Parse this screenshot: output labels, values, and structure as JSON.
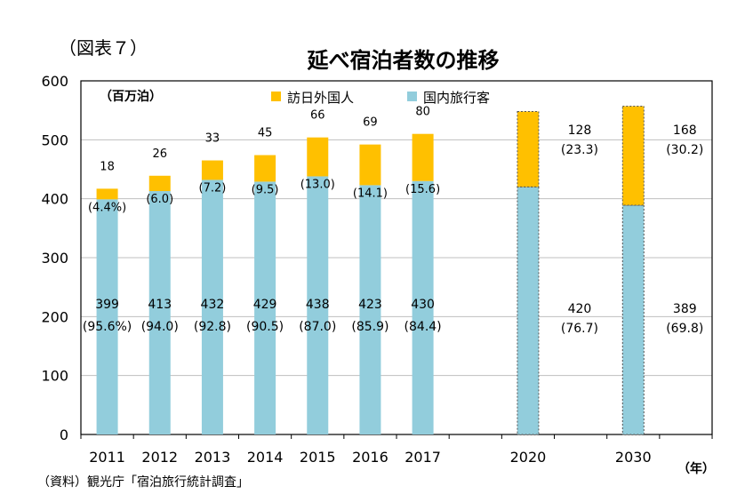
{
  "figure_label": "（図表７）",
  "source_note": "（資料）観光庁「宿泊旅行統計調査」",
  "colors": {
    "foreign": "#FFC000",
    "domestic": "#92CDDC",
    "border": "#000000",
    "grid": "#BFBFBF"
  },
  "chart_data": {
    "type": "bar",
    "stacked": true,
    "title": "延べ宿泊者数の推移",
    "unit_label": "（百万泊）",
    "xunit_label": "（年）",
    "ylim": [
      0,
      600
    ],
    "yticks": [
      0,
      100,
      200,
      300,
      400,
      500,
      600
    ],
    "grid": true,
    "legend_position": "top",
    "categories": [
      "2011",
      "2012",
      "2013",
      "2014",
      "2015",
      "2016",
      "2017",
      "2020",
      "2030"
    ],
    "series": [
      {
        "name": "国内旅行客",
        "color": "#92CDDC",
        "values": [
          399,
          413,
          432,
          429,
          438,
          423,
          430,
          420,
          389
        ],
        "labels": [
          "399",
          "413",
          "432",
          "429",
          "438",
          "423",
          "430",
          "420",
          "389"
        ],
        "share_labels": [
          "(95.6%)",
          "(94.0)",
          "(92.8)",
          "(90.5)",
          "(87.0)",
          "(85.9)",
          "(84.4)",
          "(76.7)",
          "(69.8)"
        ]
      },
      {
        "name": "訪日外国人",
        "color": "#FFC000",
        "values": [
          18,
          26,
          33,
          45,
          66,
          69,
          80,
          128,
          168
        ],
        "labels": [
          "18",
          "26",
          "33",
          "45",
          "66",
          "69",
          "80",
          "128",
          "168"
        ],
        "share_labels": [
          "(4.4%)",
          "(6.0)",
          "(7.2)",
          "(9.5)",
          "(13.0)",
          "(14.1)",
          "(15.6)",
          "(23.3)",
          "(30.2)"
        ]
      }
    ],
    "legend": [
      "訪日外国人",
      "国内旅行客"
    ]
  }
}
